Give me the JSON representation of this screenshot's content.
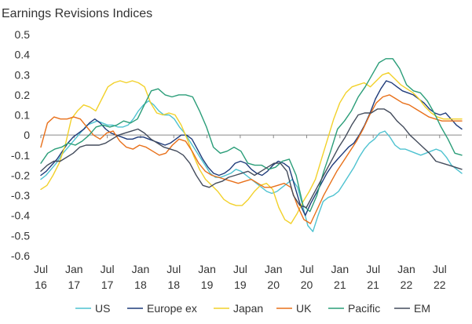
{
  "chart_data": {
    "type": "line",
    "title": "Earnings Revisions Indices",
    "xlabel": "",
    "ylabel": "",
    "ylim": [
      -0.6,
      0.5
    ],
    "grid": false,
    "legend_position": "bottom",
    "y_ticks": [
      "0.5",
      "0.4",
      "0.3",
      "0.2",
      "0.1",
      "0",
      "-0.1",
      "-0.2",
      "-0.3",
      "-0.4",
      "-0.5",
      "-0.6"
    ],
    "x_ticks": [
      {
        "month": "Jul",
        "year": "16"
      },
      {
        "month": "Jan",
        "year": "17"
      },
      {
        "month": "Jul",
        "year": "17"
      },
      {
        "month": "Jan",
        "year": "18"
      },
      {
        "month": "Jul",
        "year": "18"
      },
      {
        "month": "Jan",
        "year": "19"
      },
      {
        "month": "Jul",
        "year": "19"
      },
      {
        "month": "Jan",
        "year": "20"
      },
      {
        "month": "Jul",
        "year": "20"
      },
      {
        "month": "Jan",
        "year": "21"
      },
      {
        "month": "Jul",
        "year": "21"
      },
      {
        "month": "Jan",
        "year": "22"
      },
      {
        "month": "Jul",
        "year": "22"
      }
    ],
    "x_start": "Jul 2016",
    "x_end": "Nov 2022",
    "series": [
      {
        "name": "US",
        "color": "#4dc2d0",
        "values": [
          -0.22,
          -0.2,
          -0.17,
          -0.14,
          -0.1,
          -0.07,
          -0.04,
          -0.01,
          0.02,
          0.05,
          0.06,
          0.07,
          0.06,
          0.05,
          0.05,
          0.04,
          0.04,
          0.05,
          0.08,
          0.12,
          0.15,
          0.17,
          0.15,
          0.12,
          0.1,
          0.1,
          0.08,
          0.04,
          0.01,
          -0.03,
          -0.07,
          -0.11,
          -0.15,
          -0.19,
          -0.21,
          -0.21,
          -0.2,
          -0.19,
          -0.17,
          -0.18,
          -0.2,
          -0.22,
          -0.24,
          -0.26,
          -0.28,
          -0.29,
          -0.28,
          -0.26,
          -0.24,
          -0.22,
          -0.26,
          -0.35,
          -0.45,
          -0.48,
          -0.4,
          -0.33,
          -0.31,
          -0.3,
          -0.28,
          -0.24,
          -0.2,
          -0.16,
          -0.11,
          -0.07,
          -0.04,
          -0.02,
          0.01,
          0.02,
          -0.01,
          -0.05,
          -0.07,
          -0.07,
          -0.08,
          -0.09,
          -0.1,
          -0.09,
          -0.08,
          -0.07,
          -0.08,
          -0.11,
          -0.15,
          -0.17,
          -0.19
        ]
      },
      {
        "name": "Europe ex",
        "color": "#1f3b7a",
        "values": [
          -0.2,
          -0.18,
          -0.15,
          -0.12,
          -0.08,
          -0.04,
          -0.01,
          0.01,
          0.03,
          0.06,
          0.08,
          0.06,
          0.03,
          0.01,
          0.0,
          -0.01,
          -0.02,
          -0.02,
          -0.01,
          -0.01,
          -0.02,
          -0.03,
          -0.04,
          -0.05,
          -0.04,
          -0.02,
          0.0,
          0.0,
          -0.02,
          -0.07,
          -0.12,
          -0.16,
          -0.19,
          -0.2,
          -0.19,
          -0.17,
          -0.14,
          -0.13,
          -0.14,
          -0.17,
          -0.19,
          -0.2,
          -0.18,
          -0.15,
          -0.13,
          -0.14,
          -0.16,
          -0.25,
          -0.34,
          -0.4,
          -0.34,
          -0.29,
          -0.24,
          -0.19,
          -0.15,
          -0.12,
          -0.09,
          -0.06,
          -0.04,
          0.0,
          0.05,
          0.11,
          0.18,
          0.23,
          0.27,
          0.26,
          0.24,
          0.22,
          0.21,
          0.2,
          0.18,
          0.16,
          0.13,
          0.11,
          0.1,
          0.11,
          0.08,
          0.05,
          0.03
        ]
      },
      {
        "name": "Japan",
        "color": "#f2d12a",
        "values": [
          -0.27,
          -0.25,
          -0.2,
          -0.14,
          -0.05,
          0.08,
          0.12,
          0.15,
          0.14,
          0.12,
          0.18,
          0.24,
          0.26,
          0.27,
          0.26,
          0.27,
          0.26,
          0.24,
          0.16,
          0.11,
          0.1,
          0.11,
          0.1,
          0.05,
          -0.02,
          -0.1,
          -0.17,
          -0.22,
          -0.25,
          -0.28,
          -0.32,
          -0.34,
          -0.35,
          -0.35,
          -0.32,
          -0.28,
          -0.25,
          -0.24,
          -0.27,
          -0.36,
          -0.42,
          -0.44,
          -0.39,
          -0.33,
          -0.28,
          -0.22,
          -0.12,
          -0.02,
          0.08,
          0.16,
          0.21,
          0.24,
          0.25,
          0.26,
          0.24,
          0.27,
          0.3,
          0.31,
          0.28,
          0.25,
          0.23,
          0.21,
          0.18,
          0.14,
          0.11,
          0.09,
          0.08,
          0.08,
          0.08,
          0.08
        ]
      },
      {
        "name": "UK",
        "color": "#e8701a",
        "values": [
          -0.06,
          0.06,
          0.09,
          0.08,
          0.08,
          0.09,
          0.08,
          0.04,
          0.0,
          -0.02,
          0.01,
          0.02,
          -0.03,
          -0.06,
          -0.07,
          -0.05,
          -0.06,
          -0.08,
          -0.1,
          -0.09,
          -0.05,
          -0.02,
          -0.03,
          -0.08,
          -0.14,
          -0.18,
          -0.2,
          -0.21,
          -0.22,
          -0.23,
          -0.24,
          -0.23,
          -0.22,
          -0.24,
          -0.26,
          -0.26,
          -0.25,
          -0.24,
          -0.26,
          -0.35,
          -0.42,
          -0.44,
          -0.37,
          -0.3,
          -0.24,
          -0.18,
          -0.13,
          -0.08,
          -0.03,
          0.03,
          0.1,
          0.16,
          0.19,
          0.2,
          0.18,
          0.16,
          0.15,
          0.13,
          0.11,
          0.09,
          0.08,
          0.07,
          0.07,
          0.07,
          0.07
        ]
      },
      {
        "name": "Pacific",
        "color": "#2a9d78",
        "values": [
          -0.14,
          -0.09,
          -0.07,
          -0.06,
          -0.04,
          -0.05,
          -0.03,
          0.0,
          0.04,
          0.05,
          0.04,
          0.05,
          0.07,
          0.06,
          0.08,
          0.15,
          0.22,
          0.23,
          0.2,
          0.19,
          0.2,
          0.2,
          0.19,
          0.12,
          0.04,
          -0.06,
          -0.09,
          -0.08,
          -0.06,
          -0.08,
          -0.14,
          -0.15,
          -0.15,
          -0.17,
          -0.16,
          -0.13,
          -0.12,
          -0.2,
          -0.35,
          -0.38,
          -0.3,
          -0.18,
          -0.08,
          0.03,
          0.07,
          0.12,
          0.19,
          0.24,
          0.3,
          0.36,
          0.38,
          0.38,
          0.33,
          0.25,
          0.22,
          0.21,
          0.17,
          0.11,
          0.04,
          -0.02,
          -0.09,
          -0.1
        ]
      },
      {
        "name": "EM",
        "color": "#444c5c",
        "values": [
          -0.18,
          -0.15,
          -0.13,
          -0.13,
          -0.11,
          -0.09,
          -0.06,
          -0.05,
          -0.05,
          -0.05,
          -0.04,
          -0.02,
          0.0,
          0.01,
          0.02,
          0.03,
          0.01,
          -0.02,
          -0.04,
          -0.06,
          -0.07,
          -0.08,
          -0.1,
          -0.14,
          -0.2,
          -0.25,
          -0.26,
          -0.24,
          -0.23,
          -0.21,
          -0.2,
          -0.19,
          -0.18,
          -0.2,
          -0.18,
          -0.16,
          -0.14,
          -0.14,
          -0.18,
          -0.3,
          -0.35,
          -0.36,
          -0.3,
          -0.24,
          -0.18,
          -0.12,
          -0.06,
          -0.01,
          0.05,
          0.1,
          0.11,
          0.11,
          0.13,
          0.13,
          0.11,
          0.07,
          0.04,
          0.0,
          -0.03,
          -0.06,
          -0.09,
          -0.13,
          -0.14,
          -0.15,
          -0.16,
          -0.17
        ]
      }
    ]
  }
}
